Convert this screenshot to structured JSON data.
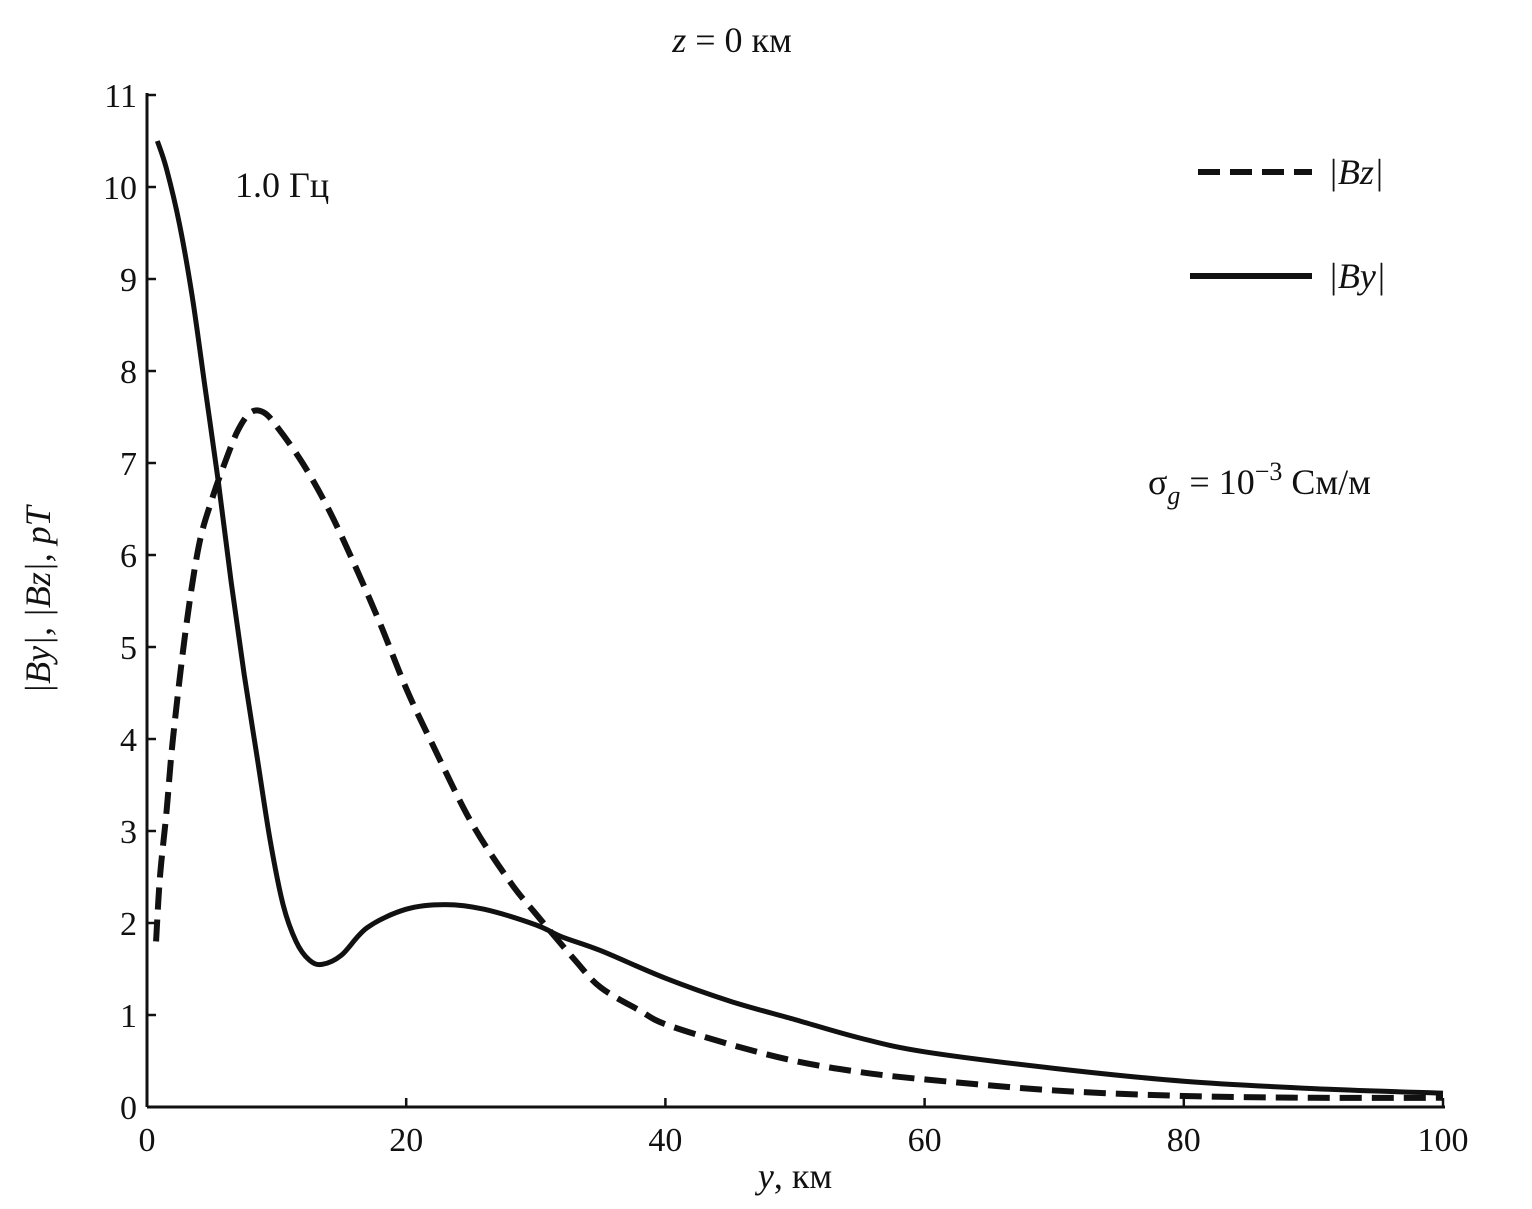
{
  "chart_data": {
    "type": "line",
    "title": "z = 0 км",
    "title_parts": {
      "var": "z",
      "rest": " = 0 км"
    },
    "xlabel": "y, км",
    "xlabel_parts": {
      "var": "y",
      "rest": ", км"
    },
    "ylabel": "|By|, |Bz|, pT",
    "xlim": [
      0,
      100
    ],
    "ylim": [
      0,
      11
    ],
    "xticks": [
      0,
      20,
      40,
      60,
      80,
      100
    ],
    "yticks": [
      0,
      1,
      2,
      3,
      4,
      5,
      6,
      7,
      8,
      9,
      10,
      11
    ],
    "grid": false,
    "legend_position": "top-right",
    "annotations": {
      "frequency": "1.0 Гц",
      "conductivity": "σg = 10−3 См/м",
      "conductivity_parts": {
        "sigma": "σ",
        "sub": "g",
        "eq": " = 10",
        "sup": "−3",
        "unit": " См/м"
      }
    },
    "series": [
      {
        "name": "|Bz|",
        "style": "dashed",
        "color": "#111111",
        "x": [
          0.7,
          1,
          1.5,
          2,
          3,
          4,
          5,
          6,
          7,
          8,
          9,
          10,
          12,
          14,
          16,
          18,
          20,
          22,
          25,
          28,
          30,
          33,
          35,
          38,
          40,
          45,
          50,
          55,
          60,
          70,
          80,
          90,
          100
        ],
        "y": [
          1.8,
          2.5,
          3.2,
          4.0,
          5.2,
          6.1,
          6.6,
          7.0,
          7.35,
          7.55,
          7.55,
          7.4,
          7.0,
          6.5,
          5.9,
          5.25,
          4.55,
          3.95,
          3.1,
          2.45,
          2.1,
          1.6,
          1.3,
          1.05,
          0.9,
          0.68,
          0.5,
          0.38,
          0.3,
          0.18,
          0.12,
          0.1,
          0.1
        ]
      },
      {
        "name": "|By|",
        "style": "solid",
        "color": "#111111",
        "x": [
          0.8,
          1.5,
          2.5,
          3.5,
          4.5,
          5.5,
          6.5,
          7.5,
          8.5,
          9.5,
          10.5,
          11.5,
          12.5,
          13.5,
          15,
          17,
          20,
          23,
          26,
          30,
          32,
          35,
          40,
          45,
          50,
          55,
          60,
          70,
          80,
          90,
          100
        ],
        "y": [
          10.5,
          10.2,
          9.6,
          8.8,
          7.8,
          6.8,
          5.7,
          4.7,
          3.8,
          2.9,
          2.2,
          1.8,
          1.6,
          1.55,
          1.65,
          1.95,
          2.15,
          2.2,
          2.15,
          1.98,
          1.85,
          1.7,
          1.4,
          1.15,
          0.95,
          0.75,
          0.6,
          0.42,
          0.28,
          0.2,
          0.15
        ]
      }
    ]
  }
}
